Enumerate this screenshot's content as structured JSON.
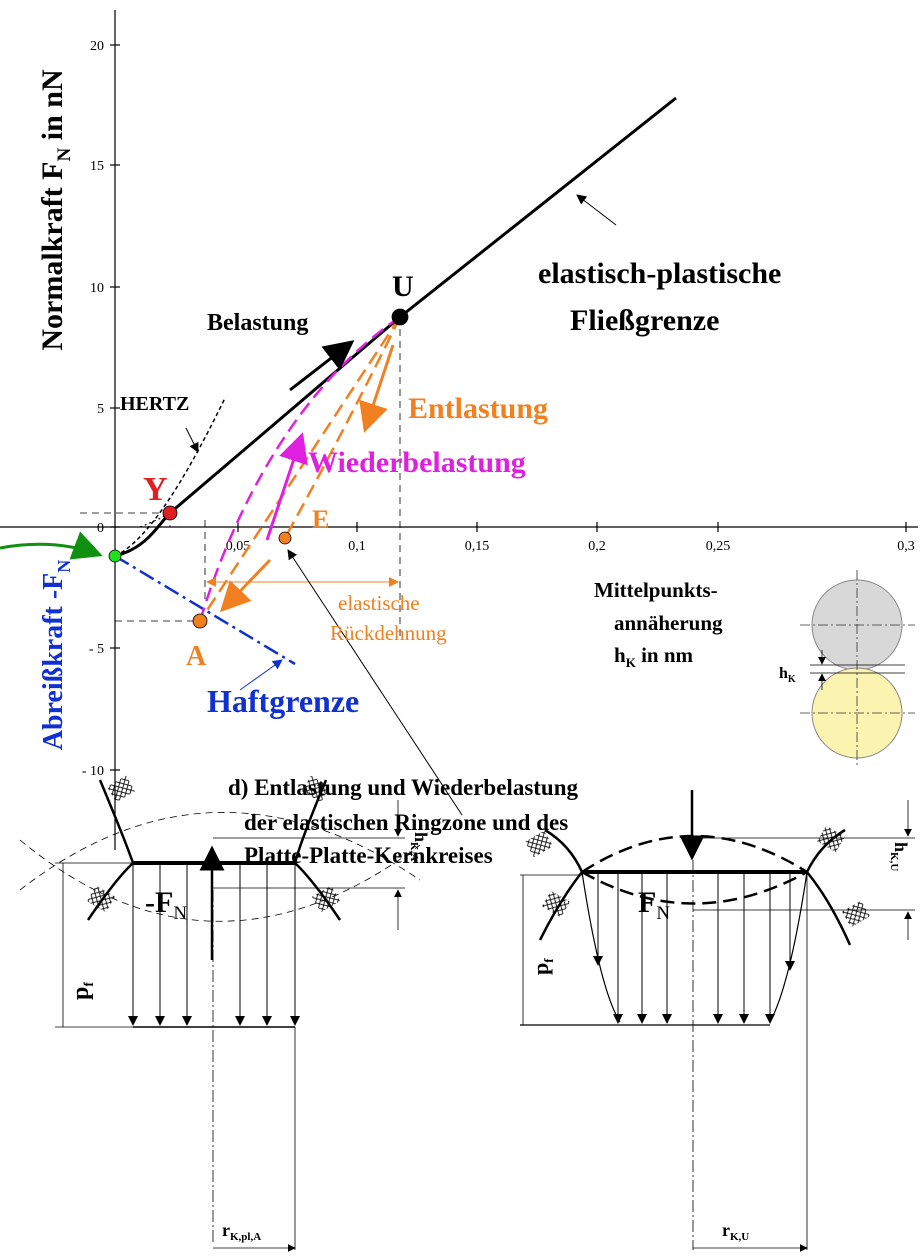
{
  "axes": {
    "y_label": {
      "text": "Normalkraft F",
      "sub": "N",
      "unit": " in nN"
    },
    "y_neg_label": {
      "text": "Abreißkraft -F",
      "sub": "N"
    },
    "y_ticks": [
      "20",
      "15",
      "10",
      "5",
      "0",
      "- 5",
      "- 10"
    ],
    "x_ticks": [
      "0,05",
      "0,1",
      "0,15",
      "0,2",
      "0,25",
      "0,3"
    ],
    "x_label": {
      "line1": "Mittelpunkts-",
      "line2": "annäherung",
      "line3": {
        "text": "h",
        "sub": "K",
        "unit": " in nm"
      }
    }
  },
  "points": {
    "U": "U",
    "Y": "Y",
    "A": "A",
    "E": "E"
  },
  "labels": {
    "hertz": "HERTZ",
    "belastung": "Belastung",
    "entlastung": "Entlastung",
    "wiederbelastung": "Wiederbelastung",
    "yield_line1": "elastisch-plastische",
    "yield_line2": "Fließgrenze",
    "haftgrenze": "Haftgrenze",
    "rueck_line1": "elastische",
    "rueck_line2": "Rückdehnung",
    "sphere_gap": {
      "text": "h",
      "sub": "K"
    }
  },
  "caption": [
    "d) Entlastung und Wiederbelastung",
    "der elastischen Ringzone und des",
    "Platte-Platte-Kernkreises"
  ],
  "left_detail": {
    "force": {
      "text": "-F",
      "sub": "N"
    },
    "pressure": {
      "text": "p",
      "sub": "f"
    },
    "gap": {
      "text": "h",
      "sub": "K,A"
    },
    "radius": {
      "text": "r",
      "sub": "K,pl,A"
    }
  },
  "right_detail": {
    "force": {
      "text": "F",
      "sub": "N"
    },
    "pressure": {
      "text": "p",
      "sub": "f"
    },
    "gap": {
      "text": "h",
      "sub": "K,U"
    },
    "radius": {
      "text": "r",
      "sub": "K,U"
    }
  }
}
